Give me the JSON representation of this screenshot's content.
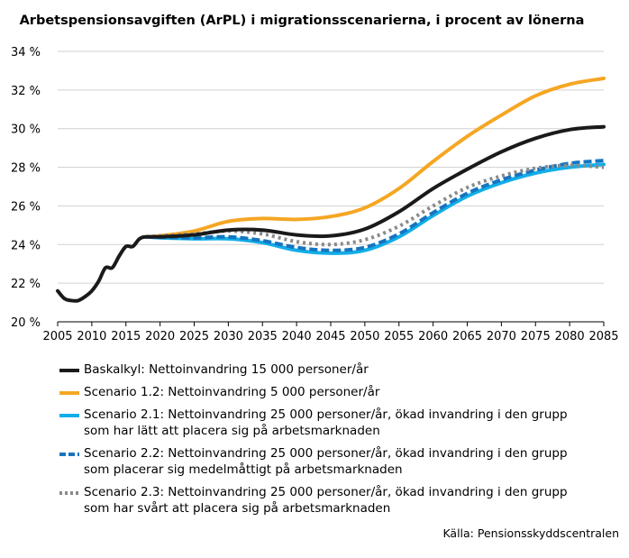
{
  "chart_data": {
    "type": "line",
    "title": "Arbetspensionsavgiften (ArPL) i migrationsscenarierna, i procent av lönerna",
    "xlim": [
      2005,
      2085
    ],
    "ylim": [
      20,
      34
    ],
    "x_ticks": [
      2005,
      2010,
      2015,
      2020,
      2025,
      2030,
      2035,
      2040,
      2045,
      2050,
      2055,
      2060,
      2065,
      2070,
      2075,
      2080,
      2085
    ],
    "y_ticks": [
      20,
      22,
      24,
      26,
      28,
      30,
      32,
      34
    ],
    "y_tick_labels": [
      "20 %",
      "22 %",
      "24 %",
      "26 %",
      "28 %",
      "30 %",
      "32 %",
      "34 %"
    ],
    "grid": "horizontal",
    "series": [
      {
        "name": "Baskalkyl: Nettoinvandring 15 000 personer/år",
        "color": "#1a1a1a",
        "style": "solid",
        "x": [
          2005,
          2006,
          2007,
          2008,
          2009,
          2010,
          2011,
          2012,
          2013,
          2014,
          2015,
          2016,
          2017,
          2018,
          2020,
          2025,
          2030,
          2035,
          2040,
          2045,
          2050,
          2055,
          2060,
          2065,
          2070,
          2075,
          2080,
          2085
        ],
        "values": [
          21.6,
          21.2,
          21.1,
          21.1,
          21.3,
          21.6,
          22.1,
          22.8,
          22.8,
          23.4,
          23.9,
          23.9,
          24.3,
          24.4,
          24.4,
          24.5,
          24.75,
          24.75,
          24.5,
          24.45,
          24.8,
          25.7,
          26.9,
          27.9,
          28.8,
          29.5,
          29.95,
          30.1
        ]
      },
      {
        "name": "Scenario 1.2: Nettoinvandring 5 000 personer/år",
        "color": "#f5a623",
        "style": "solid",
        "x": [
          2018,
          2020,
          2025,
          2030,
          2035,
          2040,
          2045,
          2050,
          2055,
          2060,
          2065,
          2070,
          2075,
          2080,
          2085
        ],
        "values": [
          24.4,
          24.45,
          24.7,
          25.2,
          25.35,
          25.3,
          25.45,
          25.9,
          26.9,
          28.3,
          29.6,
          30.7,
          31.7,
          32.3,
          32.6
        ]
      },
      {
        "name": "Scenario 2.1: Nettoinvandring 25 000 personer/år, ökad invandring i den grupp som har lätt att placera sig på arbetsmarknaden",
        "color": "#12aee8",
        "style": "solid",
        "x": [
          2018,
          2020,
          2025,
          2030,
          2035,
          2040,
          2045,
          2050,
          2055,
          2060,
          2065,
          2070,
          2075,
          2080,
          2085
        ],
        "values": [
          24.4,
          24.35,
          24.3,
          24.3,
          24.1,
          23.7,
          23.55,
          23.7,
          24.4,
          25.5,
          26.5,
          27.2,
          27.7,
          28.0,
          28.15
        ]
      },
      {
        "name": "Scenario 2.2: Nettoinvandring 25 000 personer/år, ökad invandring i den grupp som placerar sig medelmåttigt på arbetsmarknaden",
        "color": "#1675c0",
        "style": "dashed",
        "x": [
          2018,
          2020,
          2025,
          2030,
          2035,
          2040,
          2045,
          2050,
          2055,
          2060,
          2065,
          2070,
          2075,
          2080,
          2085
        ],
        "values": [
          24.4,
          24.38,
          24.35,
          24.4,
          24.2,
          23.85,
          23.7,
          23.85,
          24.55,
          25.65,
          26.65,
          27.35,
          27.85,
          28.2,
          28.35
        ]
      },
      {
        "name": "Scenario 2.3: Nettoinvandring 25 000 personer/år, ökad invandring i den grupp som har svårt att placera sig på arbetsmarknaden",
        "color": "#8a8a8a",
        "style": "dotted",
        "x": [
          2018,
          2020,
          2025,
          2030,
          2035,
          2040,
          2045,
          2050,
          2055,
          2060,
          2065,
          2070,
          2075,
          2080,
          2085
        ],
        "values": [
          24.4,
          24.45,
          24.55,
          24.7,
          24.55,
          24.15,
          24.0,
          24.25,
          24.95,
          26.0,
          26.95,
          27.55,
          27.95,
          28.1,
          28.0
        ]
      }
    ]
  },
  "legend": [
    {
      "line1": "Baskalkyl: Nettoinvandring 15 000 personer/år",
      "line2": ""
    },
    {
      "line1": "Scenario 1.2: Nettoinvandring 5 000 personer/år",
      "line2": ""
    },
    {
      "line1": "Scenario 2.1: Nettoinvandring 25 000 personer/år, ökad invandring i den grupp",
      "line2": "som har lätt att placera sig på arbetsmarknaden"
    },
    {
      "line1": "Scenario 2.2: Nettoinvandring 25 000 personer/år, ökad invandring i den grupp",
      "line2": "som placerar sig medelmåttigt på arbetsmarknaden"
    },
    {
      "line1": "Scenario 2.3: Nettoinvandring 25 000 personer/år, ökad invandring i den grupp",
      "line2": "som har svårt att placera sig på arbetsmarknaden"
    }
  ],
  "source": "Källa: Pensionsskyddscentralen"
}
